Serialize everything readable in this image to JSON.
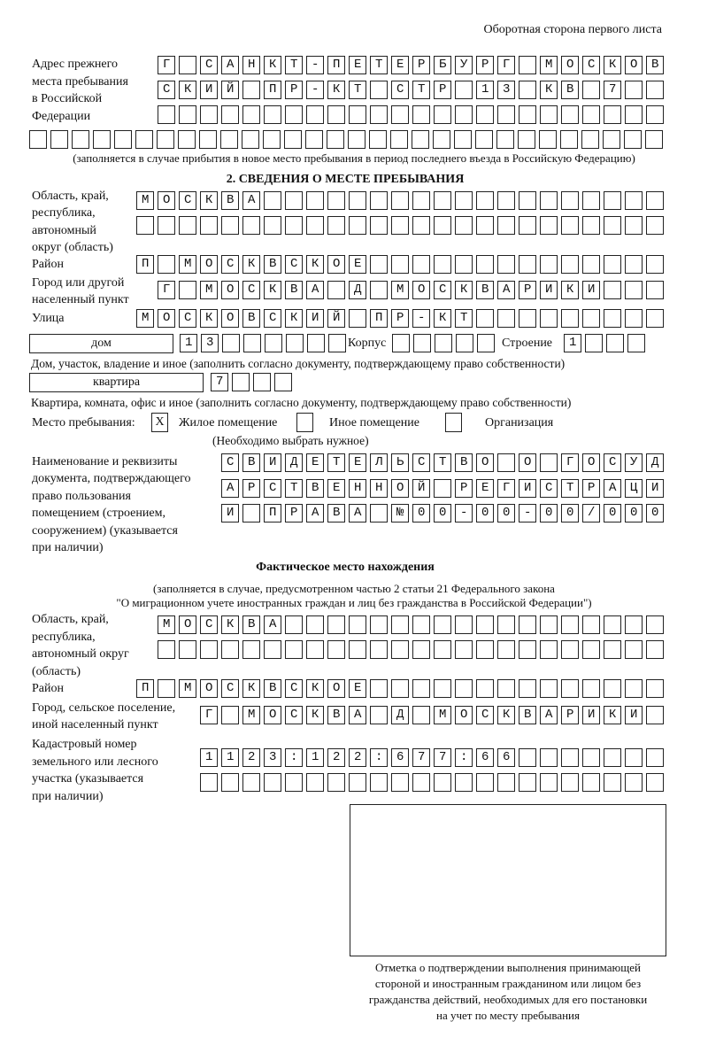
{
  "header": "Оборотная сторона первого листа",
  "prev_address": {
    "label": [
      "Адрес прежнего",
      "места пребывания",
      "в Российской",
      "Федерации"
    ],
    "rows": [
      "Г САНКТ-ПЕТЕРБУРГ МОСКОВ",
      "СКИЙ ПР-КТ СТР 13 КВ 7",
      "",
      ""
    ],
    "note": "(заполняется в случае прибытия в новое место пребывания в период последнего въезда в Российскую Федерацию)"
  },
  "section2": {
    "title": "2. СВЕДЕНИЯ О МЕСТЕ ПРЕБЫВАНИЯ",
    "region_label": [
      "Область, край,",
      "республика,",
      "автономный",
      "округ (область)"
    ],
    "region": [
      "МОСКВА",
      ""
    ],
    "district_label": "Район",
    "district": "П МОСКВСКОЕ",
    "city_label": [
      "Город или другой",
      "населенный пункт"
    ],
    "city": "Г МОСКВА Д МОСКВАРИКИ",
    "street_label": "Улица",
    "street": "МОСКОВСКИЙ ПР-КТ",
    "house_type": "дом",
    "house": "13",
    "korpus_label": "Корпус",
    "korpus": "",
    "stroenie_label": "Строение",
    "stroenie": "1",
    "house_note": "Дом, участок, владение и иное (заполнить согласно документу, подтверждающему право собственности)",
    "flat_type": "квартира",
    "flat": "7",
    "flat_note": "Квартира, комната, офис и иное (заполнить согласно документу, подтверждающему право собственности)",
    "place_label": "Место пребывания:",
    "place_options": [
      {
        "label": "Жилое помещение",
        "mark": "X"
      },
      {
        "label": "Иное помещение",
        "mark": ""
      },
      {
        "label": "Организация",
        "mark": ""
      }
    ],
    "place_note": "(Необходимо выбрать нужное)",
    "doc_label": [
      "Наименование и реквизиты",
      "документа, подтверждающего",
      "право пользования",
      "помещением (строением,",
      "сооружением) (указывается",
      "при наличии)"
    ],
    "doc": [
      "СВИДЕТЕЛЬСТВО О ГОСУД",
      "АРСТВЕННОЙ РЕГИСТРАЦИ",
      "И ПРАВА №00-00-00/000"
    ]
  },
  "actual": {
    "title": "Фактическое место нахождения",
    "subtitle": [
      "(заполняется в случае, предусмотренном частью 2 статьи 21 Федерального закона",
      "\"О миграционном учете иностранных граждан и лиц без гражданства в Российской Федерации\")"
    ],
    "region_label": [
      "Область, край,",
      "республика,",
      "автономный округ",
      "(область)"
    ],
    "region": [
      "МОСКВА",
      ""
    ],
    "district_label": "Район",
    "district": "П МОСКВСКОЕ",
    "city_label": [
      "Город, сельское поселение,",
      "иной населенный пункт"
    ],
    "city": "Г МОСКВА Д МОСКВАРИКИ",
    "cadastre_label": [
      "Кадастровый номер",
      "земельного или лесного",
      "участка (указывается",
      "при наличии)"
    ],
    "cadastre": [
      "1123:122:677:66",
      ""
    ]
  },
  "confirmation": [
    "Отметка о подтверждении выполнения принимающей",
    "стороной и иностранным гражданином или лицом без",
    "гражданства действий, необходимых для его постановки",
    "на учет по месту пребывания"
  ]
}
